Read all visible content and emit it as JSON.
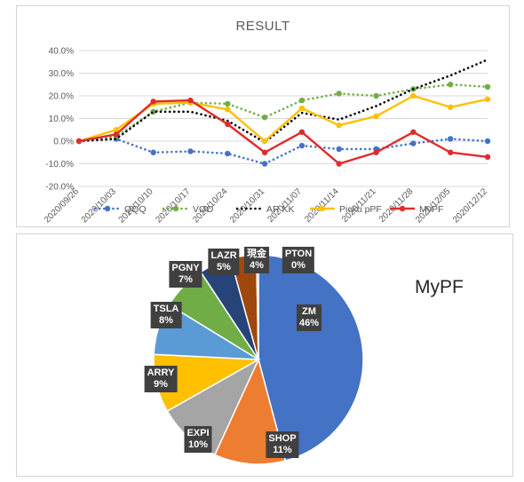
{
  "chart_data": [
    {
      "type": "line",
      "title": "RESULT",
      "x": [
        "2020/09/26",
        "2020/10/03",
        "2020/10/10",
        "2020/10/17",
        "2020/10/24",
        "2020/10/31",
        "2020/11/07",
        "2020/11/14",
        "2020/11/21",
        "2020/11/28",
        "2020/12/05",
        "2020/12/12"
      ],
      "ylim": [
        -20,
        40
      ],
      "yticks": [
        "-20.0%",
        "-10.0%",
        "0.0%",
        "10.0%",
        "20.0%",
        "30.0%",
        "40.0%"
      ],
      "grid": true,
      "legend": "bottom",
      "series": [
        {
          "name": "QQQ",
          "color": "#4472c4",
          "style": "dotted",
          "values": [
            0,
            1,
            -5,
            -4.5,
            -5.5,
            -10,
            -2,
            -3.5,
            -3.5,
            -1,
            1,
            0
          ]
        },
        {
          "name": "VOO",
          "color": "#70ad47",
          "style": "dotted",
          "values": [
            0,
            2,
            13,
            17,
            16.5,
            10.5,
            18,
            21,
            20,
            23,
            25,
            24
          ]
        },
        {
          "name": "AR KK",
          "color": "#000000",
          "style": "dotted",
          "values": [
            0,
            1,
            13,
            13,
            9,
            -0.5,
            12.5,
            9.5,
            15.5,
            23,
            29,
            36
          ]
        },
        {
          "name": "Picku pPF",
          "color": "#ffc000",
          "style": "solid",
          "values": [
            0,
            5,
            16.5,
            17,
            14,
            0,
            14.5,
            7,
            11,
            20,
            15,
            18.5
          ]
        },
        {
          "name": "MyPF",
          "color": "#e02b2b",
          "style": "solid",
          "values": [
            0,
            3,
            17.5,
            18,
            7.5,
            -5,
            4,
            -10,
            -5,
            4,
            -5,
            -7
          ]
        }
      ]
    },
    {
      "type": "pie",
      "title": "MyPF",
      "slices": [
        {
          "label": "ZM",
          "value": 46,
          "text": "46%",
          "color": "#4472c4"
        },
        {
          "label": "SHOP",
          "value": 11,
          "text": "11%",
          "color": "#ed7d31"
        },
        {
          "label": "EXPI",
          "value": 10,
          "text": "10%",
          "color": "#a5a5a5"
        },
        {
          "label": "ARRY",
          "value": 9,
          "text": "9%",
          "color": "#ffc000"
        },
        {
          "label": "TSLA",
          "value": 8,
          "text": "8%",
          "color": "#5b9bd5"
        },
        {
          "label": "PGNY",
          "value": 7,
          "text": "7%",
          "color": "#70ad47"
        },
        {
          "label": "LAZR",
          "value": 5,
          "text": "5%",
          "color": "#264478"
        },
        {
          "label": "現金",
          "value": 4,
          "text": "4%",
          "color": "#9e480e"
        },
        {
          "label": "PTON",
          "value": 0.3,
          "text": "0%",
          "color": "#636363"
        }
      ]
    }
  ]
}
